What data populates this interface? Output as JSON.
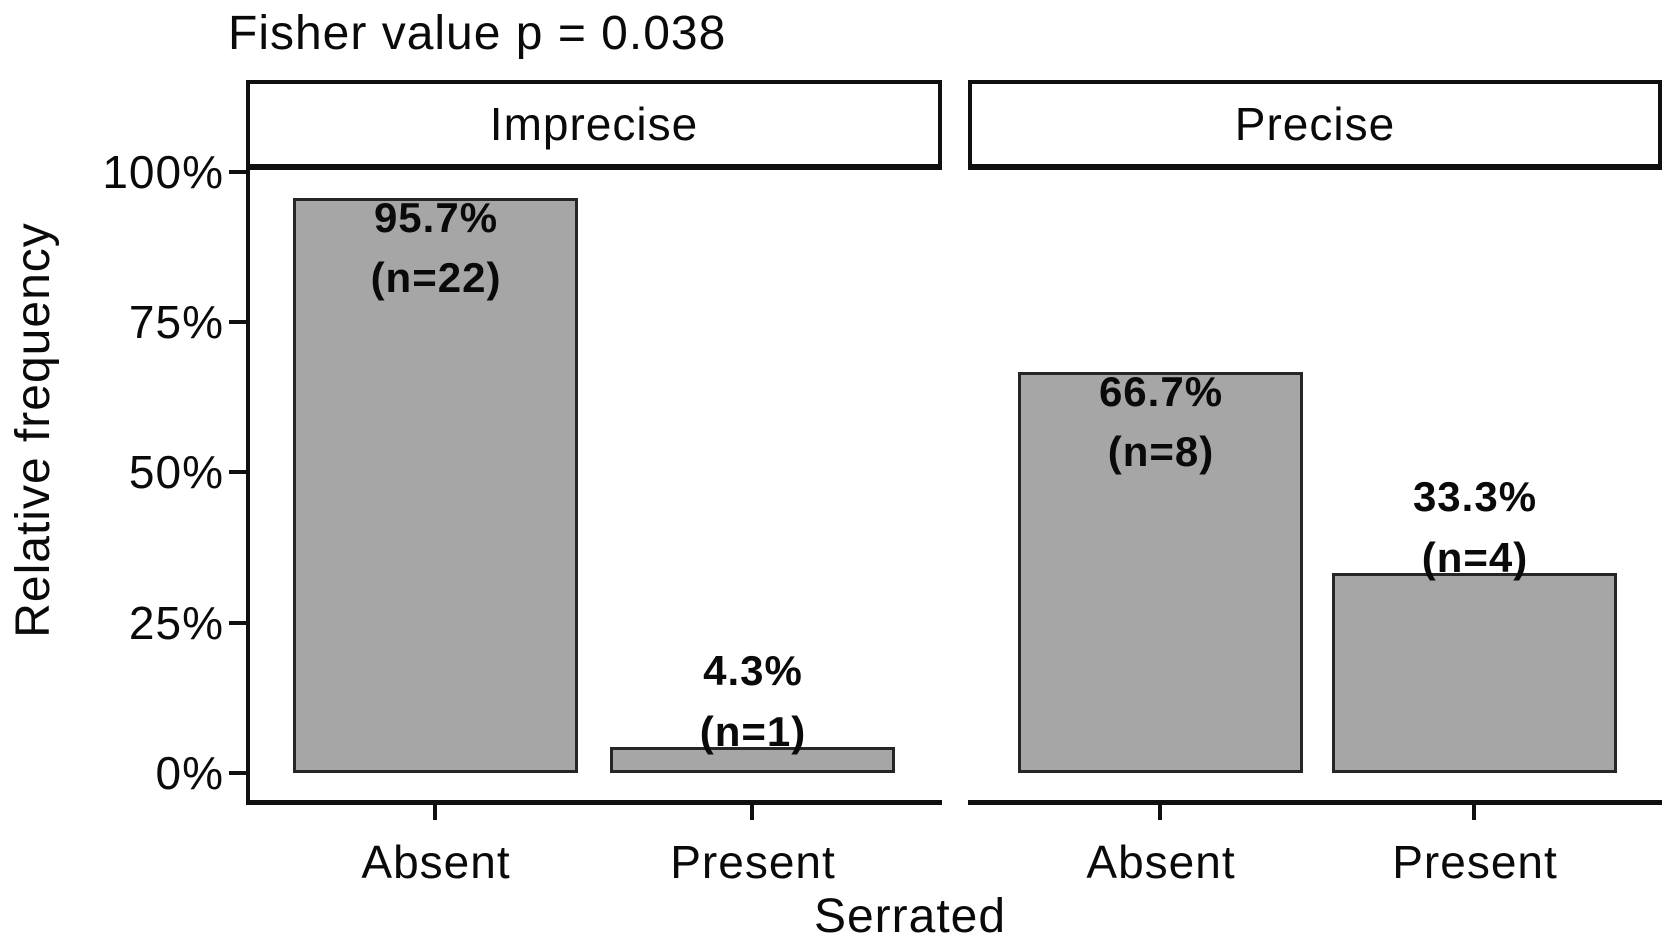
{
  "chart_data": {
    "type": "bar",
    "title": "Fisher value p = 0.038",
    "xlabel": "Serrated",
    "ylabel": "Relative frequency",
    "ylim": [
      0,
      100
    ],
    "y_unit": "%",
    "yticks": [
      "100%",
      "75%",
      "50%",
      "25%",
      "0%"
    ],
    "grid": "off",
    "legend": "none",
    "categories": [
      "Absent",
      "Present"
    ],
    "facets": [
      {
        "label": "Imprecise",
        "values": [
          95.7,
          4.3
        ],
        "counts": [
          22,
          1
        ],
        "value_labels": [
          "95.7%",
          "4.3%"
        ],
        "count_labels": [
          "(n=22)",
          "(n=1)"
        ]
      },
      {
        "label": "Precise",
        "values": [
          66.7,
          33.3
        ],
        "counts": [
          8,
          4
        ],
        "value_labels": [
          "66.7%",
          "33.3%"
        ],
        "count_labels": [
          "(n=8)",
          "(n=4)"
        ]
      }
    ],
    "colors": {
      "bar_fill": "#a6a6a6",
      "bar_border": "#262626",
      "axis": "#101010",
      "text": "#0a0a0a",
      "background": "#ffffff"
    }
  }
}
